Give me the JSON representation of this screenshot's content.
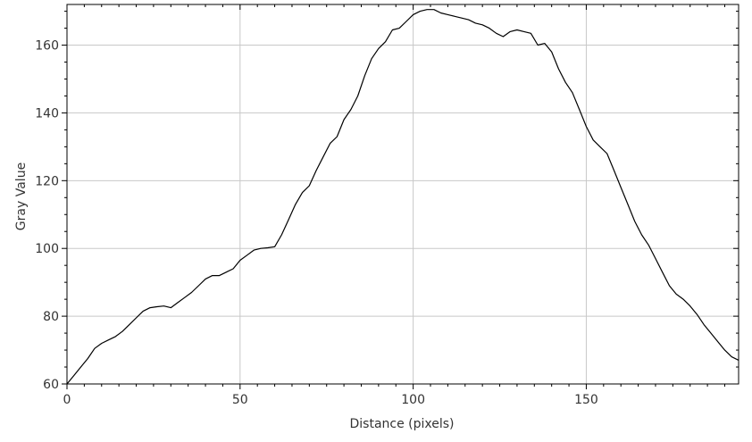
{
  "chart_data": {
    "type": "line",
    "title": "",
    "xlabel": "Distance (pixels)",
    "ylabel": "Gray Value",
    "xlim": [
      0,
      194
    ],
    "ylim": [
      60,
      172
    ],
    "x_ticks": [
      0,
      50,
      100,
      150
    ],
    "y_ticks": [
      60,
      80,
      100,
      120,
      140,
      160
    ],
    "grid": true,
    "legend": "none",
    "line_color": "#000000",
    "grid_color": "#c8c8c8",
    "series": [
      {
        "x": [
          0,
          2,
          4,
          6,
          8,
          10,
          12,
          14,
          16,
          18,
          20,
          22,
          24,
          26,
          28,
          30,
          32,
          34,
          36,
          38,
          40,
          42,
          44,
          46,
          48,
          50,
          52,
          54,
          56,
          58,
          60,
          62,
          64,
          66,
          68,
          70,
          72,
          74,
          76,
          78,
          80,
          82,
          84,
          86,
          88,
          90,
          92,
          94,
          96,
          98,
          100,
          102,
          104,
          106,
          108,
          110,
          112,
          114,
          116,
          118,
          120,
          122,
          124,
          126,
          128,
          130,
          132,
          134,
          136,
          138,
          140,
          142,
          144,
          146,
          148,
          150,
          152,
          154,
          156,
          158,
          160,
          162,
          164,
          166,
          168,
          170,
          172,
          174,
          176,
          178,
          180,
          182,
          184,
          186,
          188,
          190,
          192,
          194
        ],
        "values": [
          60,
          62.5,
          65,
          67.5,
          70.5,
          72,
          73,
          74,
          75.5,
          77.5,
          79.5,
          81.5,
          82.5,
          82.8,
          83,
          82.5,
          84,
          85.5,
          87,
          89,
          91,
          92,
          92,
          93,
          94,
          96.5,
          98,
          99.5,
          100,
          100.2,
          100.5,
          104,
          108.5,
          113,
          116.5,
          118.5,
          123,
          127,
          131,
          133,
          138,
          141,
          145,
          151,
          156,
          159,
          161,
          164.5,
          165,
          167,
          169,
          170,
          170.5,
          170.5,
          169.5,
          169,
          168.5,
          168,
          167.5,
          166.5,
          166,
          165,
          163.5,
          162.5,
          164,
          164.5,
          164,
          163.5,
          160,
          160.5,
          158,
          153,
          149,
          146,
          141,
          136,
          132,
          130,
          128,
          123,
          118,
          113,
          108,
          104,
          101,
          97,
          93,
          89,
          86.5,
          85,
          83,
          80.5,
          77.5,
          75,
          72.5,
          70,
          68,
          67
        ]
      }
    ]
  }
}
